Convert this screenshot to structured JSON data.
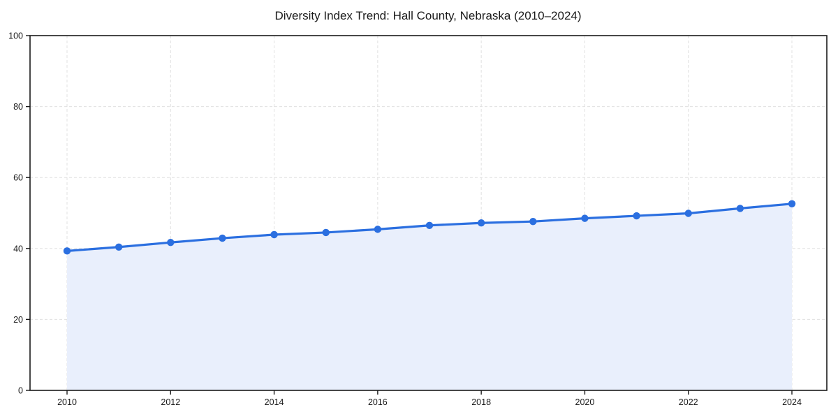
{
  "chart_data": {
    "type": "area",
    "title": "Diversity Index Trend: Hall County, Nebraska (2010–2024)",
    "x": [
      2010,
      2011,
      2012,
      2013,
      2014,
      2015,
      2016,
      2017,
      2018,
      2019,
      2020,
      2021,
      2022,
      2023,
      2024
    ],
    "values": [
      39.3,
      40.4,
      41.7,
      42.9,
      43.9,
      44.5,
      45.4,
      46.5,
      47.2,
      47.6,
      48.5,
      49.2,
      49.9,
      51.3,
      52.6
    ],
    "series_name": "Diversity Index",
    "xlabel": "",
    "ylabel": "",
    "xticks": [
      2010,
      2012,
      2014,
      2016,
      2018,
      2020,
      2022,
      2024
    ],
    "yticks": [
      0,
      20,
      40,
      60,
      80,
      100
    ],
    "xlim": [
      2010,
      2024
    ],
    "ylim": [
      0,
      100
    ],
    "grid": true,
    "grid_style": "dashed",
    "legend": false,
    "marker": "circle"
  },
  "colors": {
    "line": "#2b6fe0",
    "marker": "#2b6fe0",
    "fill": "#e9effc",
    "grid": "#e0e0e0",
    "axis": "#1a1a1a",
    "tick_text": "#1a1a1a",
    "background": "#ffffff"
  }
}
